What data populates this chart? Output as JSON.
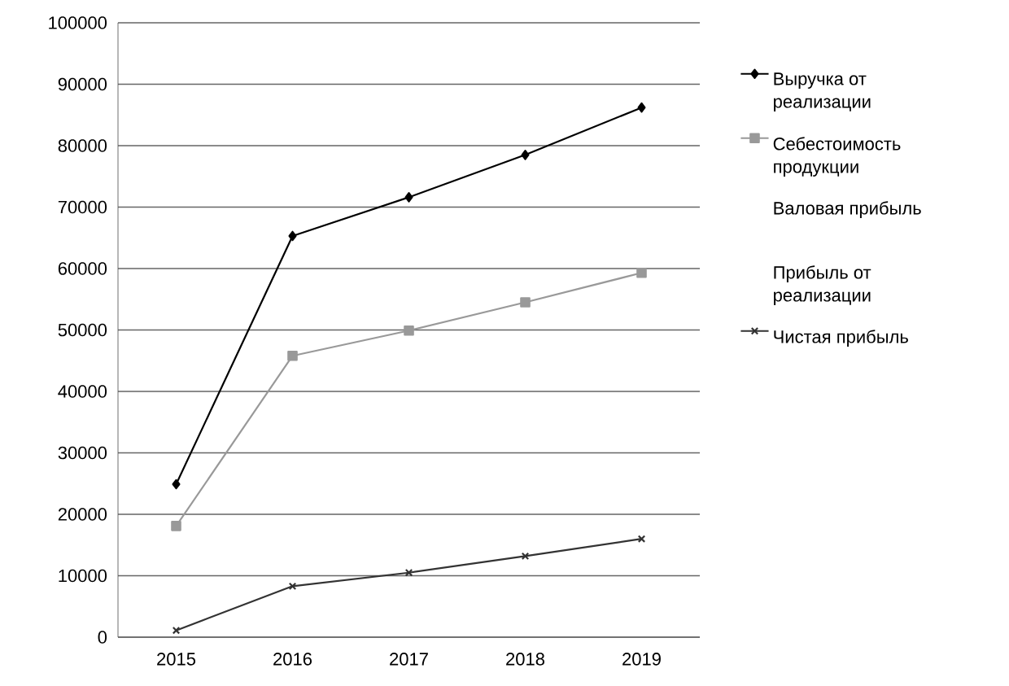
{
  "chart_data": {
    "type": "line",
    "categories": [
      "2015",
      "2016",
      "2017",
      "2018",
      "2019"
    ],
    "series": [
      {
        "name": "Выручка от реализации",
        "color": "#000000",
        "marker": "diamond",
        "values": [
          24900,
          65300,
          71600,
          78500,
          86200
        ]
      },
      {
        "name": "Себестоимость продукции",
        "color": "#999999",
        "marker": "square",
        "values": [
          18100,
          45800,
          49900,
          54500,
          59300
        ]
      },
      {
        "name": "Валовая прибыль",
        "values": [
          null,
          null,
          null,
          null,
          null
        ]
      },
      {
        "name": "Прибыль от реализации",
        "values": [
          null,
          null,
          null,
          null,
          null
        ]
      },
      {
        "name": "Чистая прибыль",
        "color": "#333333",
        "marker": "cross",
        "values": [
          1100,
          8300,
          10500,
          13200,
          16000
        ]
      }
    ],
    "ylim": [
      0,
      100000
    ],
    "yticks": [
      0,
      10000,
      20000,
      30000,
      40000,
      50000,
      60000,
      70000,
      80000,
      90000,
      100000
    ],
    "grid": "y",
    "legend": "right",
    "line_style": "solid"
  }
}
